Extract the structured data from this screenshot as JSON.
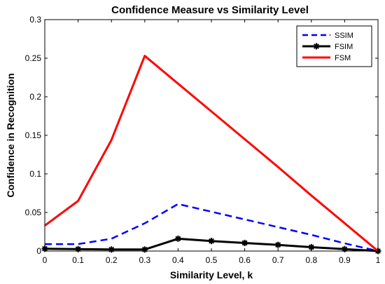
{
  "chart_data": {
    "type": "line",
    "title": "Confidence Measure vs Similarity Level",
    "xlabel": "Similarity Level, k",
    "ylabel": "Confidence in Recognition",
    "xlim": [
      0,
      1
    ],
    "ylim": [
      0,
      0.3
    ],
    "xticks": [
      0,
      0.1,
      0.2,
      0.3,
      0.4,
      0.5,
      0.6,
      0.7,
      0.8,
      0.9,
      1
    ],
    "xtick_labels": [
      "0",
      "0.1",
      "0.2",
      "0.3",
      "0.4",
      "0.5",
      "0.6",
      "0.7",
      "0.8",
      "0.9",
      "1"
    ],
    "yticks": [
      0,
      0.05,
      0.1,
      0.15,
      0.2,
      0.25,
      0.3
    ],
    "ytick_labels": [
      "0",
      "0.05",
      "0.1",
      "0.15",
      "0.2",
      "0.25",
      "0.3"
    ],
    "grid": false,
    "legend_position": "top-right",
    "series": [
      {
        "name": "SSIM",
        "color": "#0000ff",
        "style": "dashed",
        "marker": "none",
        "x": [
          0,
          0.1,
          0.2,
          0.3,
          0.4,
          0.5,
          0.6,
          0.7,
          0.8,
          0.9,
          1
        ],
        "y": [
          0.009,
          0.009,
          0.016,
          0.036,
          0.061,
          0.051,
          0.041,
          0.031,
          0.021,
          0.01,
          0.0
        ]
      },
      {
        "name": "FSIM",
        "color": "#000000",
        "style": "solid",
        "marker": "asterisk",
        "x": [
          0,
          0.1,
          0.2,
          0.3,
          0.4,
          0.5,
          0.6,
          0.7,
          0.8,
          0.9,
          1
        ],
        "y": [
          0.003,
          0.0025,
          0.002,
          0.002,
          0.016,
          0.013,
          0.0105,
          0.008,
          0.005,
          0.0025,
          0.0
        ]
      },
      {
        "name": "FSM",
        "color": "#ff0000",
        "style": "solid",
        "marker": "none",
        "x": [
          0,
          0.1,
          0.2,
          0.3,
          0.4,
          0.5,
          0.6,
          0.7,
          0.8,
          0.9,
          1
        ],
        "y": [
          0.033,
          0.065,
          0.144,
          0.253,
          0.217,
          0.181,
          0.145,
          0.109,
          0.072,
          0.036,
          0.0
        ]
      }
    ]
  }
}
